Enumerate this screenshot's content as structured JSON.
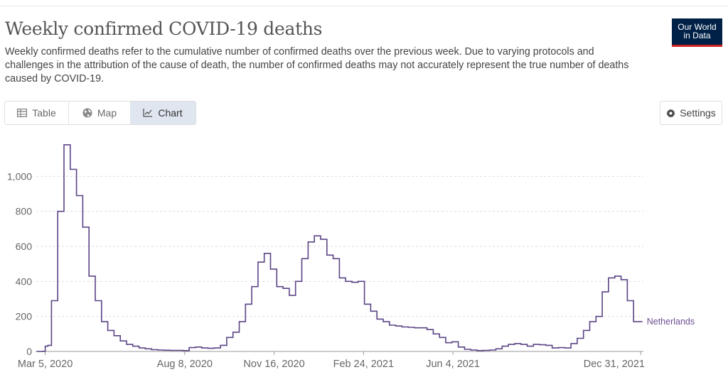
{
  "header": {
    "title": "Weekly confirmed COVID-19 deaths",
    "subtitle": "Weekly confirmed deaths refer to the cumulative number of confirmed deaths over the previous week. Due to varying protocols and challenges in the attribution of the cause of death, the number of confirmed deaths may not accurately represent the true number of deaths caused by COVID-19."
  },
  "logo": {
    "line1": "Our World",
    "line2": "in Data"
  },
  "tabs": [
    {
      "label": "Table",
      "icon": "table-icon",
      "active": false
    },
    {
      "label": "Map",
      "icon": "globe-icon",
      "active": false
    },
    {
      "label": "Chart",
      "icon": "line-chart-icon",
      "active": true
    }
  ],
  "settings": {
    "label": "Settings",
    "icon": "gear-icon"
  },
  "colors": {
    "series": "#5b4485",
    "grid": "#dddddd",
    "active_tab": "#dfe6ef",
    "logo_bg": "#002147",
    "logo_accent": "#ce261e"
  },
  "chart_data": {
    "type": "line",
    "step": true,
    "ylim": [
      0,
      1200
    ],
    "xlim": [
      "2020-02-24",
      "2022-01-03"
    ],
    "grid": true,
    "y_ticks": [
      {
        "value": 0,
        "label": "0"
      },
      {
        "value": 200,
        "label": "200"
      },
      {
        "value": 400,
        "label": "400"
      },
      {
        "value": 600,
        "label": "600"
      },
      {
        "value": 800,
        "label": "800"
      },
      {
        "value": 1000,
        "label": "1,000"
      }
    ],
    "x_ticks": [
      {
        "date": "2020-03-05",
        "label": "Mar 5, 2020"
      },
      {
        "date": "2020-08-08",
        "label": "Aug 8, 2020"
      },
      {
        "date": "2020-11-16",
        "label": "Nov 16, 2020"
      },
      {
        "date": "2021-02-24",
        "label": "Feb 24, 2021"
      },
      {
        "date": "2021-06-04",
        "label": "Jun 4, 2021"
      },
      {
        "date": "2021-12-31",
        "label": "Dec 31, 2021"
      }
    ],
    "series": [
      {
        "name": "Netherlands",
        "points": [
          [
            "2020-02-24",
            0
          ],
          [
            "2020-03-02",
            1
          ],
          [
            "2020-03-05",
            30
          ],
          [
            "2020-03-08",
            35
          ],
          [
            "2020-03-12",
            290
          ],
          [
            "2020-03-19",
            800
          ],
          [
            "2020-03-26",
            1180
          ],
          [
            "2020-04-02",
            1040
          ],
          [
            "2020-04-09",
            890
          ],
          [
            "2020-04-16",
            710
          ],
          [
            "2020-04-23",
            430
          ],
          [
            "2020-04-30",
            290
          ],
          [
            "2020-05-07",
            170
          ],
          [
            "2020-05-14",
            120
          ],
          [
            "2020-05-21",
            90
          ],
          [
            "2020-05-28",
            60
          ],
          [
            "2020-06-04",
            40
          ],
          [
            "2020-06-11",
            30
          ],
          [
            "2020-06-18",
            20
          ],
          [
            "2020-06-25",
            15
          ],
          [
            "2020-07-02",
            10
          ],
          [
            "2020-07-09",
            8
          ],
          [
            "2020-07-16",
            7
          ],
          [
            "2020-07-23",
            6
          ],
          [
            "2020-07-30",
            6
          ],
          [
            "2020-08-06",
            5
          ],
          [
            "2020-08-13",
            22
          ],
          [
            "2020-08-20",
            25
          ],
          [
            "2020-08-27",
            20
          ],
          [
            "2020-09-03",
            18
          ],
          [
            "2020-09-10",
            20
          ],
          [
            "2020-09-17",
            35
          ],
          [
            "2020-09-24",
            80
          ],
          [
            "2020-10-01",
            110
          ],
          [
            "2020-10-08",
            170
          ],
          [
            "2020-10-15",
            270
          ],
          [
            "2020-10-22",
            370
          ],
          [
            "2020-10-29",
            510
          ],
          [
            "2020-11-05",
            560
          ],
          [
            "2020-11-12",
            470
          ],
          [
            "2020-11-19",
            370
          ],
          [
            "2020-11-26",
            360
          ],
          [
            "2020-12-03",
            320
          ],
          [
            "2020-12-10",
            400
          ],
          [
            "2020-12-17",
            530
          ],
          [
            "2020-12-24",
            625
          ],
          [
            "2020-12-31",
            660
          ],
          [
            "2021-01-07",
            640
          ],
          [
            "2021-01-14",
            550
          ],
          [
            "2021-01-21",
            530
          ],
          [
            "2021-01-28",
            420
          ],
          [
            "2021-02-04",
            400
          ],
          [
            "2021-02-11",
            395
          ],
          [
            "2021-02-18",
            400
          ],
          [
            "2021-02-25",
            270
          ],
          [
            "2021-03-04",
            230
          ],
          [
            "2021-03-11",
            185
          ],
          [
            "2021-03-18",
            170
          ],
          [
            "2021-03-25",
            150
          ],
          [
            "2021-04-01",
            145
          ],
          [
            "2021-04-08",
            140
          ],
          [
            "2021-04-15",
            138
          ],
          [
            "2021-04-22",
            135
          ],
          [
            "2021-04-29",
            135
          ],
          [
            "2021-05-06",
            125
          ],
          [
            "2021-05-13",
            100
          ],
          [
            "2021-05-20",
            80
          ],
          [
            "2021-05-27",
            50
          ],
          [
            "2021-06-03",
            55
          ],
          [
            "2021-06-10",
            25
          ],
          [
            "2021-06-17",
            12
          ],
          [
            "2021-06-24",
            8
          ],
          [
            "2021-07-01",
            5
          ],
          [
            "2021-07-08",
            6
          ],
          [
            "2021-07-15",
            8
          ],
          [
            "2021-07-22",
            15
          ],
          [
            "2021-07-29",
            30
          ],
          [
            "2021-08-05",
            40
          ],
          [
            "2021-08-12",
            45
          ],
          [
            "2021-08-19",
            40
          ],
          [
            "2021-08-26",
            30
          ],
          [
            "2021-09-02",
            40
          ],
          [
            "2021-09-09",
            38
          ],
          [
            "2021-09-16",
            35
          ],
          [
            "2021-09-23",
            20
          ],
          [
            "2021-09-30",
            22
          ],
          [
            "2021-10-07",
            20
          ],
          [
            "2021-10-14",
            45
          ],
          [
            "2021-10-21",
            75
          ],
          [
            "2021-10-28",
            120
          ],
          [
            "2021-11-04",
            170
          ],
          [
            "2021-11-11",
            200
          ],
          [
            "2021-11-18",
            340
          ],
          [
            "2021-11-25",
            420
          ],
          [
            "2021-12-02",
            430
          ],
          [
            "2021-12-09",
            410
          ],
          [
            "2021-12-16",
            290
          ],
          [
            "2021-12-23",
            170
          ],
          [
            "2022-01-02",
            170
          ]
        ]
      }
    ]
  }
}
